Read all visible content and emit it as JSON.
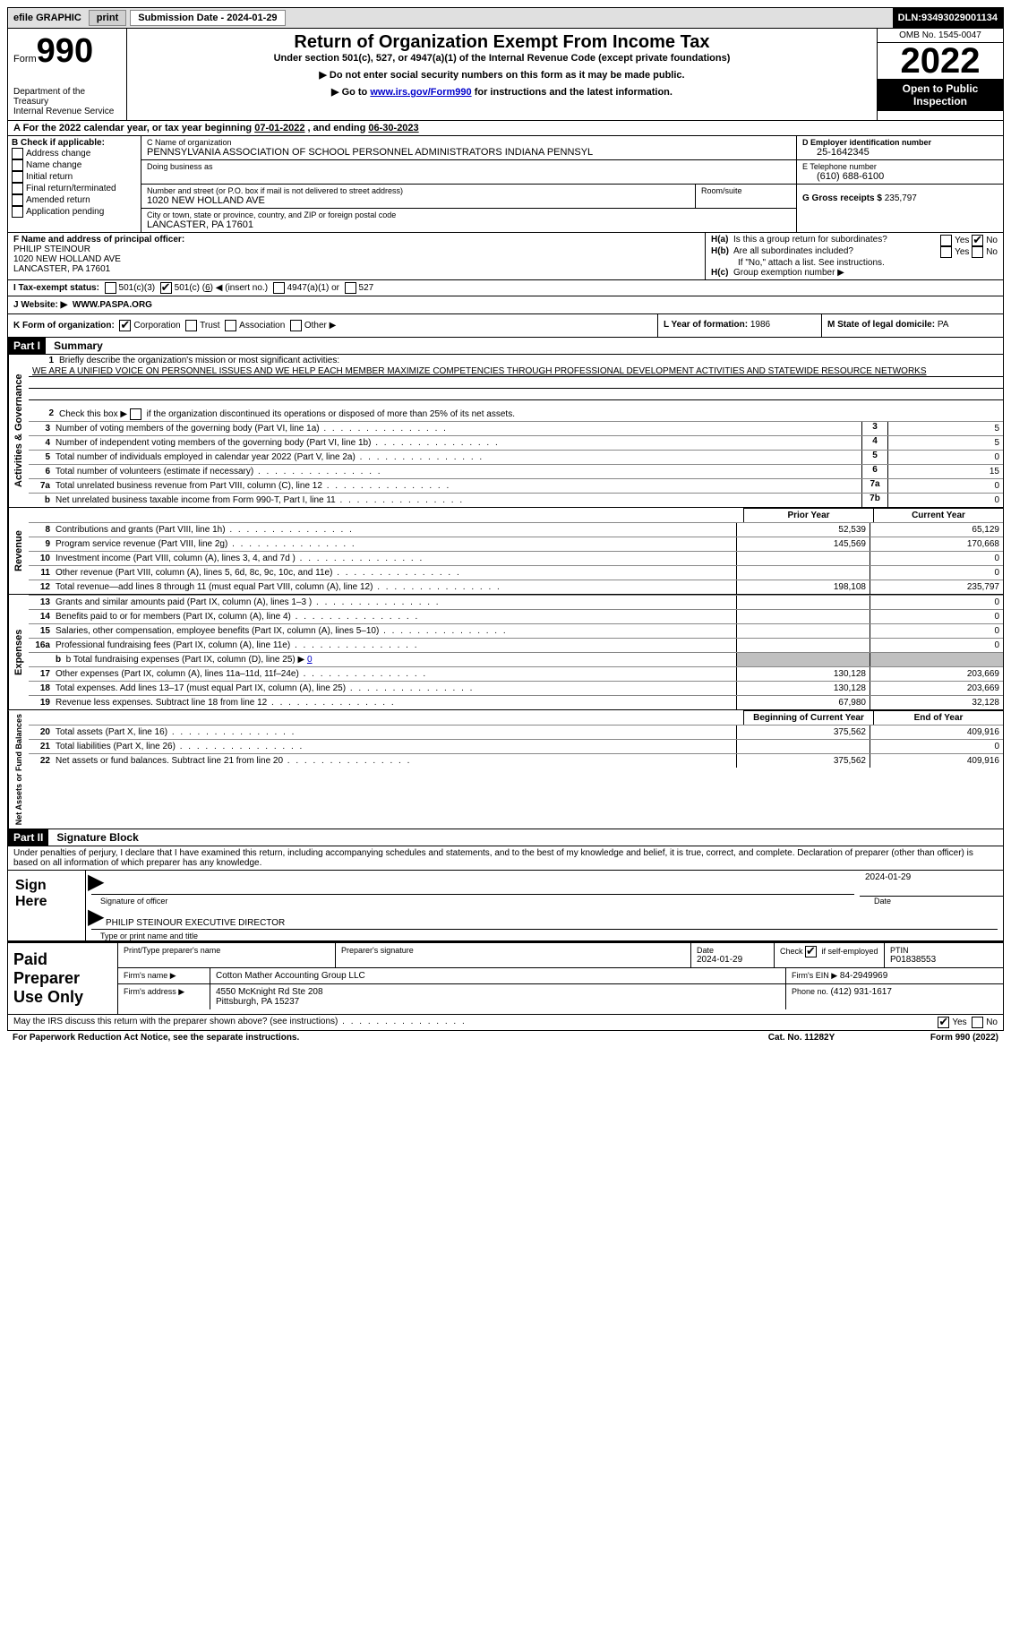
{
  "topbar": {
    "efile": "efile GRAPHIC",
    "print": "print",
    "sub_label": "Submission Date - ",
    "sub_date": "2024-01-29",
    "dln_label": "DLN: ",
    "dln": "93493029001134"
  },
  "header": {
    "form_label": "Form",
    "form_num": "990",
    "dept": "Department of the Treasury\nInternal Revenue Service",
    "title": "Return of Organization Exempt From Income Tax",
    "sub1": "Under section 501(c), 527, or 4947(a)(1) of the Internal Revenue Code (except private foundations)",
    "sub2": "▶ Do not enter social security numbers on this form as it may be made public.",
    "sub3_pre": "▶ Go to ",
    "sub3_link": "www.irs.gov/Form990",
    "sub3_post": " for instructions and the latest information.",
    "omb": "OMB No. 1545-0047",
    "year": "2022",
    "inspection": "Open to Public Inspection"
  },
  "lineA": {
    "text_pre": "For the 2022 calendar year, or tax year beginning ",
    "begin": "07-01-2022",
    "text_mid": "   , and ending ",
    "end": "06-30-2023"
  },
  "sectionB": {
    "label": "B Check if applicable:",
    "opts": [
      "Address change",
      "Name change",
      "Initial return",
      "Final return/terminated",
      "Amended return",
      "Application pending"
    ],
    "c_label": "C Name of organization",
    "c_name": "PENNSYLVANIA ASSOCIATION OF SCHOOL PERSONNEL ADMINISTRATORS INDIANA PENNSYL",
    "dba_label": "Doing business as",
    "addr_label": "Number and street (or P.O. box if mail is not delivered to street address)",
    "addr": "1020 NEW HOLLAND AVE",
    "room_label": "Room/suite",
    "city_label": "City or town, state or province, country, and ZIP or foreign postal code",
    "city": "LANCASTER, PA  17601",
    "d_label": "D Employer identification number",
    "ein": "25-1642345",
    "e_label": "E Telephone number",
    "phone": "(610) 688-6100",
    "g_label": "G Gross receipts $ ",
    "gross": "235,797"
  },
  "sectionF": {
    "f_label": "F  Name and address of principal officer:",
    "name": "PHILIP STEINOUR",
    "addr": "1020 NEW HOLLAND AVE",
    "city": "LANCASTER, PA  17601",
    "ha_label": "H(a)  Is this a group return for subordinates?",
    "hb_label": "H(b)  Are all subordinates included?",
    "hb_note": "If \"No,\" attach a list. See instructions.",
    "hc_label": "H(c)  Group exemption number ▶",
    "yes": "Yes",
    "no": "No"
  },
  "taxExempt": {
    "i_label": "I  Tax-exempt status:",
    "c3": "501(c)(3)",
    "c_other_pre": "501(c) ( ",
    "c_other_num": "6",
    "c_other_post": " ) ◀ (insert no.)",
    "a1": "4947(a)(1) or",
    "s527": "527"
  },
  "website": {
    "j_label": "J  Website: ▶",
    "url": "WWW.PASPA.ORG"
  },
  "formOrg": {
    "k_label": "K Form of organization:",
    "corp": "Corporation",
    "trust": "Trust",
    "assoc": "Association",
    "other": "Other ▶",
    "l_label": "L Year of formation: ",
    "l_val": "1986",
    "m_label": "M State of legal domicile: ",
    "m_val": "PA"
  },
  "part1": {
    "label": "Part I",
    "title": "Summary",
    "l1_label": "Briefly describe the organization's mission or most significant activities:",
    "mission": "WE ARE A UNIFIED VOICE ON PERSONNEL ISSUES AND WE HELP EACH MEMBER MAXIMIZE COMPETENCIES THROUGH PROFESSIONAL DEVELOPMENT ACTIVITIES AND STATEWIDE RESOURCE NETWORKS",
    "l2": "Check this box ▶        if the organization discontinued its operations or disposed of more than 25% of its net assets.",
    "lines3": [
      {
        "n": "3",
        "t": "Number of voting members of the governing body (Part VI, line 1a)",
        "b": "3",
        "v": "5"
      },
      {
        "n": "4",
        "t": "Number of independent voting members of the governing body (Part VI, line 1b)",
        "b": "4",
        "v": "5"
      },
      {
        "n": "5",
        "t": "Total number of individuals employed in calendar year 2022 (Part V, line 2a)",
        "b": "5",
        "v": "0"
      },
      {
        "n": "6",
        "t": "Total number of volunteers (estimate if necessary)",
        "b": "6",
        "v": "15"
      },
      {
        "n": "7a",
        "t": "Total unrelated business revenue from Part VIII, column (C), line 12",
        "b": "7a",
        "v": "0"
      },
      {
        "n": "b",
        "t": "Net unrelated business taxable income from Form 990-T, Part I, line 11",
        "b": "7b",
        "v": "0"
      }
    ],
    "prior_label": "Prior Year",
    "current_label": "Current Year",
    "revenue": [
      {
        "n": "8",
        "t": "Contributions and grants (Part VIII, line 1h)",
        "p": "52,539",
        "c": "65,129"
      },
      {
        "n": "9",
        "t": "Program service revenue (Part VIII, line 2g)",
        "p": "145,569",
        "c": "170,668"
      },
      {
        "n": "10",
        "t": "Investment income (Part VIII, column (A), lines 3, 4, and 7d )",
        "p": "",
        "c": "0"
      },
      {
        "n": "11",
        "t": "Other revenue (Part VIII, column (A), lines 5, 6d, 8c, 9c, 10c, and 11e)",
        "p": "",
        "c": "0"
      },
      {
        "n": "12",
        "t": "Total revenue—add lines 8 through 11 (must equal Part VIII, column (A), line 12)",
        "p": "198,108",
        "c": "235,797"
      }
    ],
    "expenses": [
      {
        "n": "13",
        "t": "Grants and similar amounts paid (Part IX, column (A), lines 1–3 )",
        "p": "",
        "c": "0"
      },
      {
        "n": "14",
        "t": "Benefits paid to or for members (Part IX, column (A), line 4)",
        "p": "",
        "c": "0"
      },
      {
        "n": "15",
        "t": "Salaries, other compensation, employee benefits (Part IX, column (A), lines 5–10)",
        "p": "",
        "c": "0"
      },
      {
        "n": "16a",
        "t": "Professional fundraising fees (Part IX, column (A), line 11e)",
        "p": "",
        "c": "0"
      }
    ],
    "l16b_pre": "b  Total fundraising expenses (Part IX, column (D), line 25) ▶",
    "l16b_val": "0",
    "expenses2": [
      {
        "n": "17",
        "t": "Other expenses (Part IX, column (A), lines 11a–11d, 11f–24e)",
        "p": "130,128",
        "c": "203,669"
      },
      {
        "n": "18",
        "t": "Total expenses. Add lines 13–17 (must equal Part IX, column (A), line 25)",
        "p": "130,128",
        "c": "203,669"
      },
      {
        "n": "19",
        "t": "Revenue less expenses. Subtract line 18 from line 12",
        "p": "67,980",
        "c": "32,128"
      }
    ],
    "begin_label": "Beginning of Current Year",
    "end_label": "End of Year",
    "netassets": [
      {
        "n": "20",
        "t": "Total assets (Part X, line 16)",
        "p": "375,562",
        "c": "409,916"
      },
      {
        "n": "21",
        "t": "Total liabilities (Part X, line 26)",
        "p": "",
        "c": "0"
      },
      {
        "n": "22",
        "t": "Net assets or fund balances. Subtract line 21 from line 20",
        "p": "375,562",
        "c": "409,916"
      }
    ],
    "vlab_gov": "Activities & Governance",
    "vlab_rev": "Revenue",
    "vlab_exp": "Expenses",
    "vlab_net": "Net Assets or Fund Balances"
  },
  "part2": {
    "label": "Part II",
    "title": "Signature Block",
    "perjury": "Under penalties of perjury, I declare that I have examined this return, including accompanying schedules and statements, and to the best of my knowledge and belief, it is true, correct, and complete. Declaration of preparer (other than officer) is based on all information of which preparer has any knowledge.",
    "sign_here": "Sign Here",
    "sig_officer": "Signature of officer",
    "sig_date_label": "Date",
    "sig_date": "2024-01-29",
    "name_title": "PHILIP STEINOUR  EXECUTIVE DIRECTOR",
    "name_sub": "Type or print name and title"
  },
  "preparer": {
    "label": "Paid Preparer Use Only",
    "print_name_label": "Print/Type preparer's name",
    "sig_label": "Preparer's signature",
    "date_label": "Date",
    "date": "2024-01-29",
    "check_label": "Check          if self-employed",
    "ptin_label": "PTIN",
    "ptin": "P01838553",
    "firm_name_label": "Firm's name     ▶",
    "firm_name": "Cotton Mather Accounting Group LLC",
    "firm_ein_label": "Firm's EIN ▶",
    "firm_ein": "84-2949969",
    "firm_addr_label": "Firm's address ▶",
    "firm_addr1": "4550 McKnight Rd Ste 208",
    "firm_addr2": "Pittsburgh, PA  15237",
    "phone_label": "Phone no. ",
    "phone": "(412) 931-1617"
  },
  "footer": {
    "discuss": "May the IRS discuss this return with the preparer shown above? (see instructions)",
    "yes": "Yes",
    "no": "No",
    "paperwork": "For Paperwork Reduction Act Notice, see the separate instructions.",
    "cat": "Cat. No. 11282Y",
    "form": "Form 990 (2022)"
  }
}
